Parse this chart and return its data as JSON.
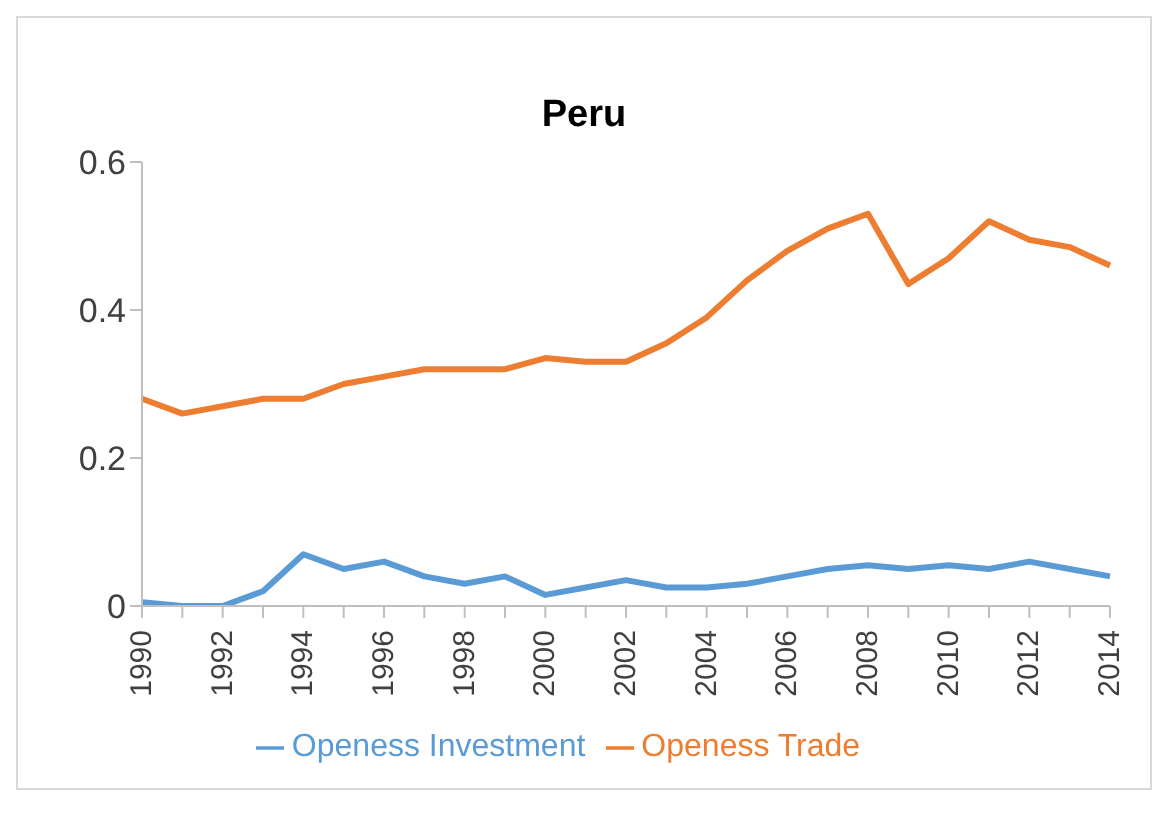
{
  "chart_data": {
    "type": "line",
    "title": "Peru",
    "categories": [
      "1990",
      null,
      "1992",
      null,
      "1994",
      null,
      "1996",
      null,
      "1998",
      null,
      "2000",
      null,
      "2002",
      null,
      "2004",
      null,
      "2006",
      null,
      "2008",
      null,
      "2010",
      null,
      "2012",
      null,
      "2014"
    ],
    "series": [
      {
        "name": "Openess Investment",
        "color": "#5b9bd5",
        "values": [
          0.005,
          0,
          0,
          0.02,
          0.07,
          0.05,
          0.06,
          0.04,
          0.03,
          0.04,
          0.015,
          0.025,
          0.035,
          0.025,
          0.025,
          0.03,
          0.04,
          0.05,
          0.055,
          0.05,
          0.055,
          0.05,
          0.06,
          0.05,
          0.04
        ]
      },
      {
        "name": "Openess Trade",
        "color": "#ed7d31",
        "values": [
          0.28,
          0.26,
          0.27,
          0.28,
          0.28,
          0.3,
          0.31,
          0.32,
          0.32,
          0.32,
          0.335,
          0.33,
          0.33,
          0.355,
          0.39,
          0.44,
          0.48,
          0.51,
          0.53,
          0.435,
          0.47,
          0.52,
          0.495,
          0.485,
          0.46
        ]
      }
    ],
    "ylim": [
      0,
      0.6
    ],
    "yticks": [
      0,
      0.2,
      0.4,
      0.6
    ],
    "grid": false,
    "legend": "bottom",
    "marker": "none",
    "line_style": "solid"
  }
}
